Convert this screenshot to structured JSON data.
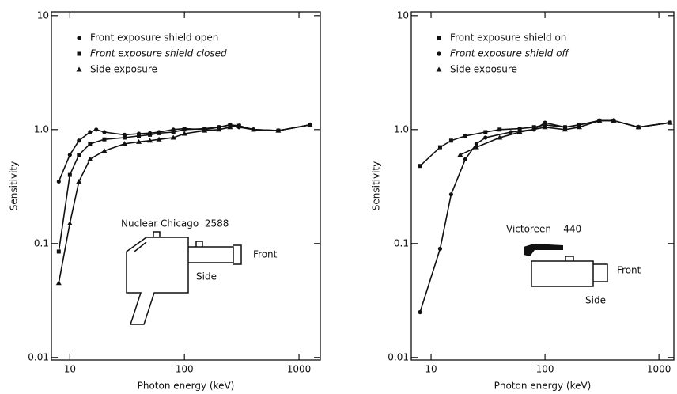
{
  "chart_data": [
    {
      "type": "line",
      "log_x": true,
      "log_y": true,
      "xlabel": "Photon energy (keV)",
      "ylabel": "Sensitivity",
      "xlim": [
        6.9,
        1535
      ],
      "ylim": [
        0.0095,
        10.8
      ],
      "xticks": [
        10,
        100,
        1000
      ],
      "yticks": [
        {
          "value": 0.01,
          "label": "0.01"
        },
        {
          "value": 0.1,
          "label": "0.1"
        },
        {
          "value": 1,
          "label": "1.0"
        },
        10
      ],
      "annotations": [
        "Nuclear Chicago  2588",
        "Front",
        "Side"
      ],
      "series": [
        {
          "name": "Front exposure shield open",
          "color": "#111111",
          "marker": "circle",
          "x": [
            8,
            10,
            12,
            15,
            17,
            20,
            30,
            40,
            50,
            60,
            80,
            100,
            150,
            200,
            250,
            300,
            400,
            660,
            1250
          ],
          "values": [
            0.35,
            0.6,
            0.8,
            0.95,
            1.0,
            0.95,
            0.9,
            0.92,
            0.93,
            0.95,
            1.0,
            1.02,
            1.0,
            1.05,
            1.1,
            1.05,
            1.0,
            0.98,
            1.1
          ]
        },
        {
          "name": "Front exposure shield closed",
          "color": "#111111",
          "marker": "square",
          "x": [
            8,
            10,
            12,
            15,
            20,
            30,
            40,
            50,
            60,
            80,
            100,
            150,
            200,
            250,
            300,
            400,
            660,
            1250
          ],
          "values": [
            0.085,
            0.4,
            0.6,
            0.75,
            0.82,
            0.85,
            0.88,
            0.9,
            0.93,
            0.95,
            1.0,
            1.02,
            1.05,
            1.1,
            1.08,
            1.0,
            0.98,
            1.1
          ]
        },
        {
          "name": "Side exposure",
          "color": "#111111",
          "marker": "triangle",
          "x": [
            8,
            10,
            12,
            15,
            20,
            30,
            40,
            50,
            60,
            80,
            100,
            150,
            200,
            250,
            300,
            400,
            660,
            1250
          ],
          "values": [
            0.045,
            0.15,
            0.35,
            0.55,
            0.65,
            0.75,
            0.78,
            0.8,
            0.82,
            0.85,
            0.92,
            0.98,
            1.0,
            1.05,
            1.08,
            1.0,
            0.98,
            1.1
          ]
        }
      ]
    },
    {
      "type": "line",
      "log_x": true,
      "log_y": true,
      "xlabel": "Photon energy (keV)",
      "ylabel": "Sensitivity",
      "xlim": [
        6.7,
        1352
      ],
      "ylim": [
        0.0095,
        10.8
      ],
      "xticks": [
        10,
        100,
        1000
      ],
      "yticks": [
        {
          "value": 0.01,
          "label": "0.01"
        },
        {
          "value": 0.1,
          "label": "0.1"
        },
        {
          "value": 1,
          "label": "1.0"
        },
        10
      ],
      "annotations": [
        "Victoreen    440",
        "Front",
        "Side"
      ],
      "series": [
        {
          "name": "Front exposure shield on",
          "color": "#111111",
          "marker": "square",
          "x": [
            8,
            12,
            15,
            20,
            30,
            40,
            60,
            80,
            100,
            150,
            200,
            300,
            400,
            660,
            1250
          ],
          "values": [
            0.48,
            0.7,
            0.8,
            0.88,
            0.95,
            1.0,
            1.02,
            1.05,
            1.1,
            1.05,
            1.1,
            1.2,
            1.2,
            1.05,
            1.15
          ]
        },
        {
          "name": "Front exposure shield off",
          "color": "#111111",
          "marker": "circle",
          "x": [
            8,
            12,
            15,
            20,
            25,
            30,
            50,
            80,
            100,
            150,
            200,
            300,
            400,
            660,
            1250
          ],
          "values": [
            0.025,
            0.09,
            0.27,
            0.55,
            0.75,
            0.85,
            0.95,
            1.0,
            1.15,
            1.05,
            1.1,
            1.2,
            1.2,
            1.05,
            1.15
          ]
        },
        {
          "name": "Side exposure",
          "color": "#111111",
          "marker": "triangle",
          "x": [
            18,
            25,
            40,
            60,
            100,
            150,
            200,
            300,
            400,
            660,
            1250
          ],
          "values": [
            0.6,
            0.7,
            0.85,
            0.95,
            1.05,
            1.0,
            1.05,
            1.2,
            1.2,
            1.05,
            1.15
          ]
        }
      ]
    }
  ]
}
